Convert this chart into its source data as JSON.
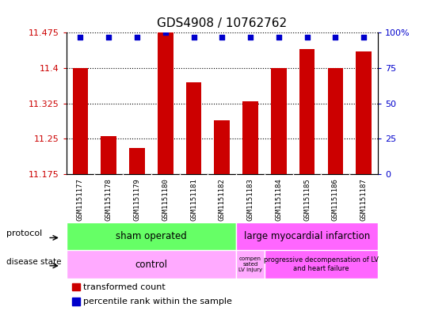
{
  "title": "GDS4908 / 10762762",
  "samples": [
    "GSM1151177",
    "GSM1151178",
    "GSM1151179",
    "GSM1151180",
    "GSM1151181",
    "GSM1151182",
    "GSM1151183",
    "GSM1151184",
    "GSM1151185",
    "GSM1151186",
    "GSM1151187"
  ],
  "bar_values": [
    11.4,
    11.255,
    11.23,
    11.475,
    11.37,
    11.29,
    11.33,
    11.4,
    11.44,
    11.4,
    11.435
  ],
  "percentile_values": [
    97,
    97,
    97,
    100,
    97,
    97,
    97,
    97,
    97,
    97,
    97
  ],
  "ymin": 11.175,
  "ymax": 11.475,
  "yticks": [
    11.175,
    11.25,
    11.325,
    11.4,
    11.475
  ],
  "ytick_labels": [
    "11.175",
    "11.25",
    "11.325",
    "11.4",
    "11.475"
  ],
  "right_yticks": [
    0,
    25,
    50,
    75,
    100
  ],
  "right_ytick_labels": [
    "0",
    "25",
    "50",
    "75",
    "100%"
  ],
  "bar_color": "#cc0000",
  "dot_color": "#0000cc",
  "bar_bottom": 11.175,
  "sham_color": "#66ff66",
  "lmi_color": "#ff66ff",
  "control_color": "#ffaaff",
  "comp_color": "#ffaaff",
  "prog_color": "#ff66ff",
  "gray_color": "#c0c0c0"
}
